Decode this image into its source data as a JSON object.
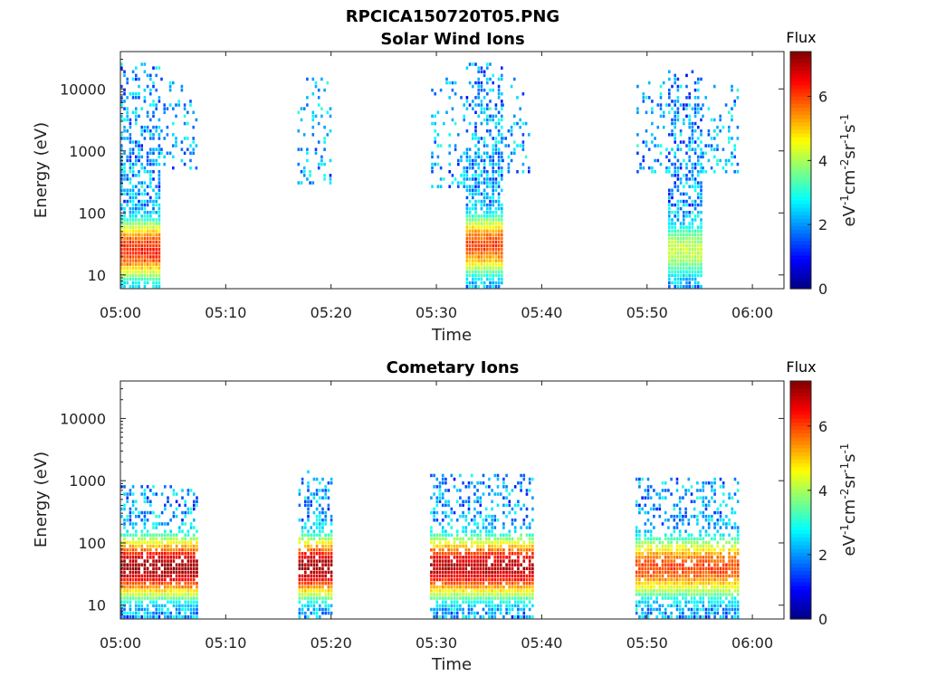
{
  "figure_title": "RPCICA150720T05.PNG",
  "chart_data": [
    {
      "type": "heatmap",
      "title": "Solar Wind Ions",
      "xlabel": "Time",
      "ylabel": "Energy (eV)",
      "x_ticks": [
        "05:00",
        "05:10",
        "05:20",
        "05:30",
        "05:40",
        "05:50",
        "06:00"
      ],
      "xlim_minutes": [
        0,
        63
      ],
      "y_ticks": [
        "10",
        "100",
        "1000",
        "10000"
      ],
      "y_scale": "log",
      "ylim": [
        6,
        40000
      ],
      "colorbar": {
        "title": "Flux",
        "label": "eV-1cm-2sr-1s-1",
        "ticks": [
          "0",
          "2",
          "4",
          "6"
        ],
        "range": [
          0,
          7.4
        ]
      },
      "colormap": "jet",
      "bursts": [
        {
          "start": 0.0,
          "end": 3.8,
          "emin": 6,
          "emax": 25000,
          "density": 0.85,
          "peak_flux": 6.3,
          "peak_energy": 25
        },
        {
          "start": 3.8,
          "end": 7.2,
          "emin": 500,
          "emax": 15000,
          "density": 0.3,
          "peak_flux": 2.0,
          "peak_energy": 3000
        },
        {
          "start": 16.8,
          "end": 20.0,
          "emin": 300,
          "emax": 15000,
          "density": 0.3,
          "peak_flux": 2.2,
          "peak_energy": 3000
        },
        {
          "start": 29.5,
          "end": 32.8,
          "emin": 250,
          "emax": 15000,
          "density": 0.28,
          "peak_flux": 2.0,
          "peak_energy": 3000
        },
        {
          "start": 32.8,
          "end": 36.2,
          "emin": 6,
          "emax": 25000,
          "density": 0.9,
          "peak_flux": 6.0,
          "peak_energy": 30
        },
        {
          "start": 36.2,
          "end": 38.9,
          "emin": 400,
          "emax": 15000,
          "density": 0.28,
          "peak_flux": 2.0,
          "peak_energy": 3000
        },
        {
          "start": 49.0,
          "end": 52.0,
          "emin": 400,
          "emax": 15000,
          "density": 0.32,
          "peak_flux": 2.0,
          "peak_energy": 3000
        },
        {
          "start": 52.0,
          "end": 55.2,
          "emin": 6,
          "emax": 20000,
          "density": 0.9,
          "peak_flux": 4.2,
          "peak_energy": 25
        },
        {
          "start": 55.2,
          "end": 58.6,
          "emin": 400,
          "emax": 12000,
          "density": 0.3,
          "peak_flux": 2.0,
          "peak_energy": 3000
        }
      ]
    },
    {
      "type": "heatmap",
      "title": "Cometary Ions",
      "xlabel": "Time",
      "ylabel": "Energy (eV)",
      "x_ticks": [
        "05:00",
        "05:10",
        "05:20",
        "05:30",
        "05:40",
        "05:50",
        "06:00"
      ],
      "xlim_minutes": [
        0,
        63
      ],
      "y_ticks": [
        "10",
        "100",
        "1000",
        "10000"
      ],
      "y_scale": "log",
      "ylim": [
        6,
        40000
      ],
      "colorbar": {
        "title": "Flux",
        "label": "eV-1cm-2sr-1s-1",
        "ticks": [
          "0",
          "2",
          "4",
          "6"
        ],
        "range": [
          0,
          7.4
        ]
      },
      "colormap": "jet",
      "bursts": [
        {
          "start": 0.0,
          "end": 7.2,
          "emin": 6,
          "emax": 800,
          "density": 0.8,
          "peak_flux": 7.2,
          "peak_energy": 40
        },
        {
          "start": 16.9,
          "end": 20.0,
          "emin": 6,
          "emax": 1500,
          "density": 0.75,
          "peak_flux": 7.2,
          "peak_energy": 40
        },
        {
          "start": 29.4,
          "end": 39.3,
          "emin": 6,
          "emax": 1200,
          "density": 0.78,
          "peak_flux": 7.0,
          "peak_energy": 40
        },
        {
          "start": 48.9,
          "end": 58.6,
          "emin": 6,
          "emax": 1100,
          "density": 0.75,
          "peak_flux": 6.0,
          "peak_energy": 40
        }
      ]
    }
  ]
}
